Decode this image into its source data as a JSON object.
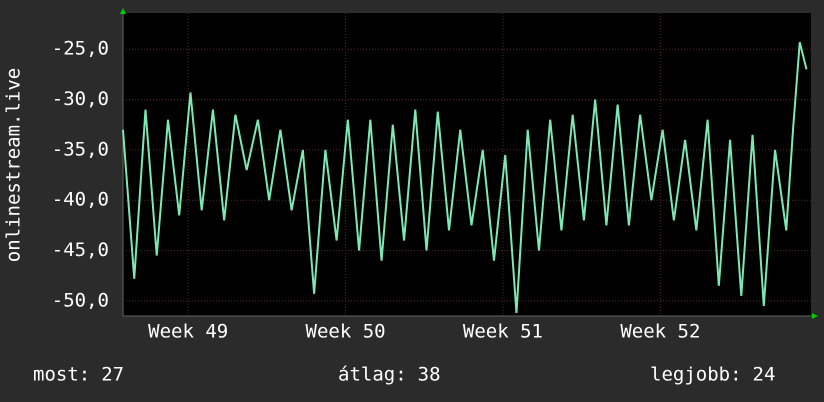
{
  "chart_data": {
    "type": "line",
    "y_label": "onlinestream.live",
    "xlim": [
      0,
      30.6
    ],
    "ylim": [
      -51.5,
      -21.4
    ],
    "yticks": [
      {
        "value": -25,
        "label": "-25,0"
      },
      {
        "value": -30,
        "label": "-30,0"
      },
      {
        "value": -35,
        "label": "-35,0"
      },
      {
        "value": -40,
        "label": "-40,0"
      },
      {
        "value": -45,
        "label": "-45,0"
      },
      {
        "value": -50,
        "label": "-50,0"
      }
    ],
    "xticks": [
      {
        "value": 2.9,
        "label": "Week 49"
      },
      {
        "value": 9.9,
        "label": "Week 50"
      },
      {
        "value": 16.9,
        "label": "Week 51"
      },
      {
        "value": 23.9,
        "label": "Week 52"
      }
    ],
    "grid": true,
    "x": [
      0,
      0.5,
      1,
      1.5,
      2,
      2.5,
      3,
      3.5,
      4,
      4.5,
      5,
      5.5,
      6,
      6.5,
      7,
      7.5,
      8,
      8.5,
      9,
      9.5,
      10,
      10.5,
      11,
      11.5,
      12,
      12.5,
      13,
      13.5,
      14,
      14.5,
      15,
      15.5,
      16,
      16.5,
      17,
      17.5,
      18,
      18.5,
      19,
      19.5,
      20,
      20.5,
      21,
      21.5,
      22,
      22.5,
      23,
      23.5,
      24,
      24.5,
      25,
      25.5,
      26,
      26.5,
      27,
      27.5,
      28,
      28.5,
      29,
      29.5,
      29.8,
      30.1,
      30.4
    ],
    "series": [
      {
        "name": "onlinestream.live",
        "color": "#7ee8b4",
        "values": [
          -33,
          -47.8,
          -31,
          -45.5,
          -32,
          -41.5,
          -29.3,
          -41,
          -31,
          -42,
          -31.5,
          -37,
          -32,
          -40,
          -33,
          -41,
          -35,
          -49.3,
          -35,
          -44,
          -32,
          -45,
          -32,
          -46,
          -32.5,
          -44,
          -31,
          -45,
          -31.2,
          -43,
          -33,
          -42.5,
          -35,
          -46,
          -35.5,
          -51.2,
          -33,
          -45,
          -32,
          -43,
          -31.5,
          -42,
          -30,
          -42.5,
          -30.5,
          -42.5,
          -31.5,
          -40,
          -33,
          -42,
          -34,
          -43,
          -32,
          -48.5,
          -34,
          -49.5,
          -33.5,
          -50.5,
          -35,
          -43,
          -33,
          -24.3,
          -27
        ]
      }
    ],
    "stats": [
      {
        "label": "most:",
        "value": 27
      },
      {
        "label": "átlag:",
        "value": 38
      },
      {
        "label": "legjobb:",
        "value": 24
      }
    ]
  }
}
